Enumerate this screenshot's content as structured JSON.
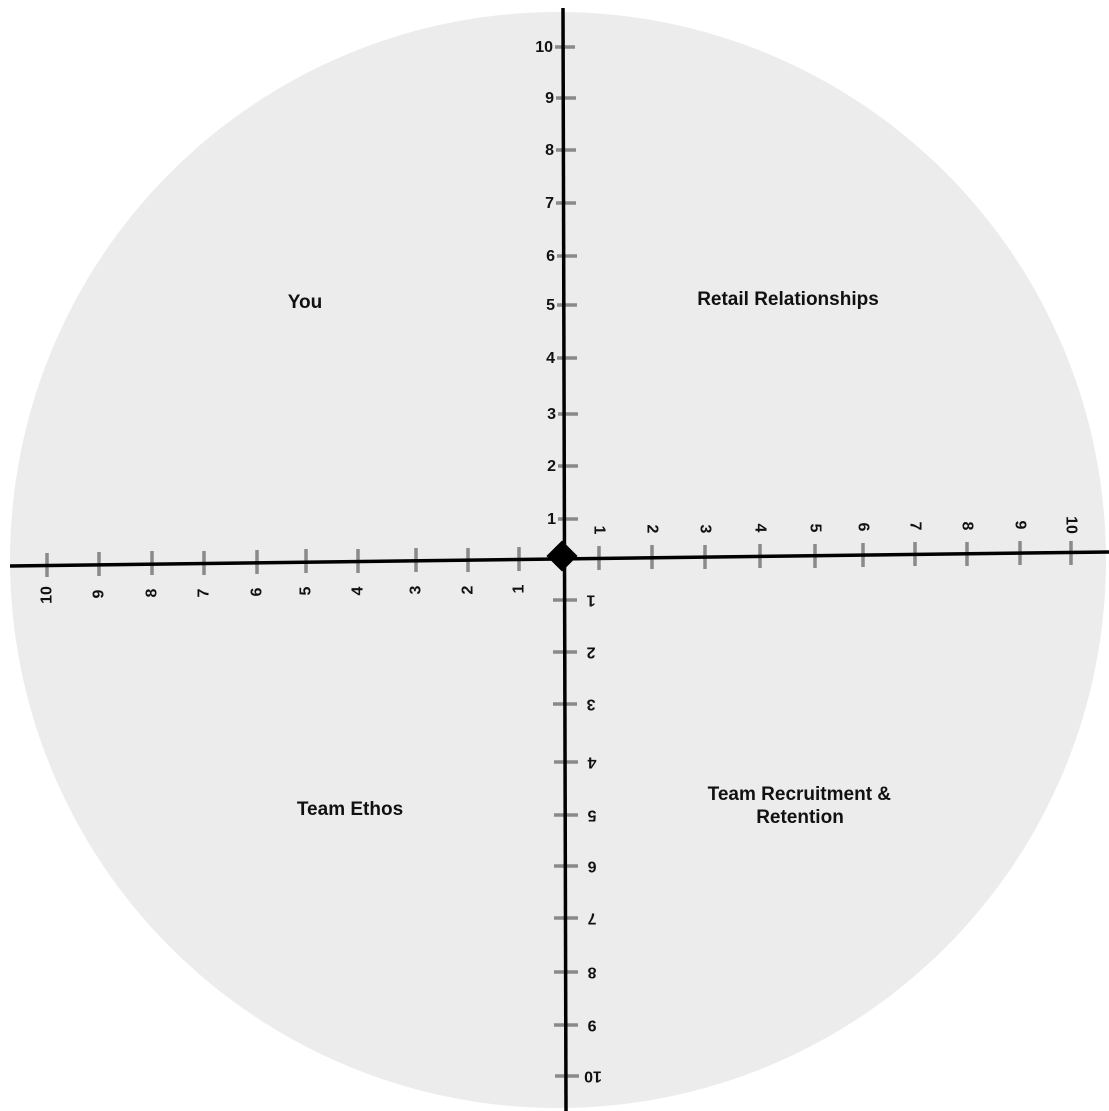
{
  "colors": {
    "circle_fill": "#ececec",
    "axis": "#000000",
    "tick": "#8a8a8a",
    "marker": "#000000",
    "text": "#111111"
  },
  "axes": {
    "up_ticks": [
      "1",
      "2",
      "3",
      "4",
      "5",
      "6",
      "7",
      "8",
      "9",
      "10"
    ],
    "right_ticks": [
      "1",
      "2",
      "3",
      "4",
      "5",
      "6",
      "7",
      "8",
      "9",
      "10"
    ],
    "left_ticks": [
      "1",
      "2",
      "3",
      "4",
      "5",
      "6",
      "7",
      "8",
      "9",
      "10"
    ],
    "down_ticks": [
      "1",
      "2",
      "3",
      "4",
      "5",
      "6",
      "7",
      "8",
      "9",
      "10"
    ]
  },
  "quadrants": {
    "top_left": "You",
    "top_right": "Retail Relationships",
    "bottom_left": "Team Ethos",
    "bottom_right": [
      "Team Recruitment &",
      "Retention"
    ]
  },
  "center_marker_icon": "diamond-icon"
}
